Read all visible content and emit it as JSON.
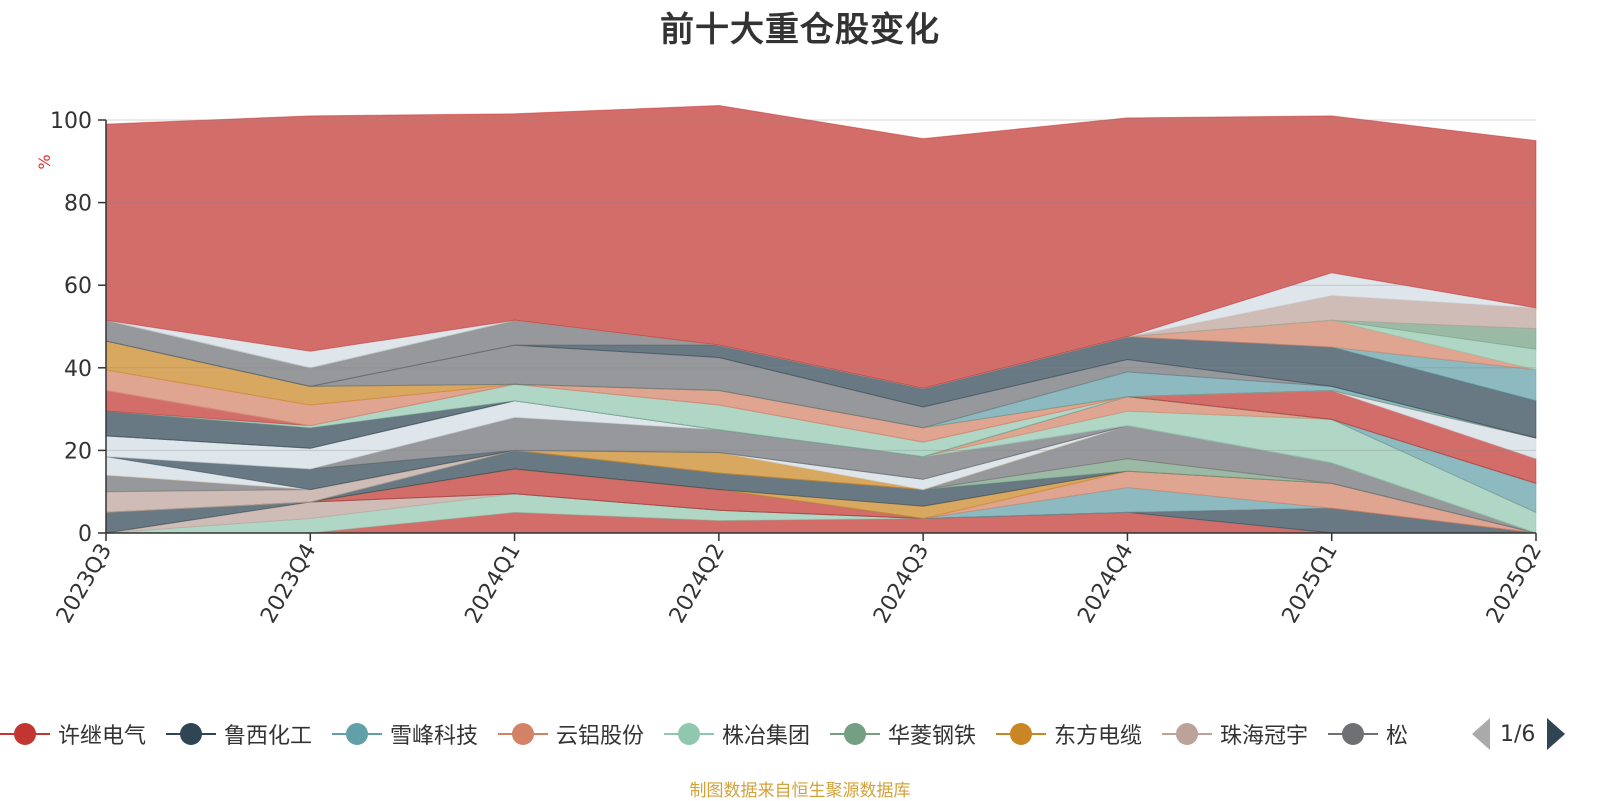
{
  "title": "前十大重仓股变化",
  "footer": "制图数据来自恒生聚源数据库",
  "pager": {
    "text": "1/6"
  },
  "legend": [
    {
      "name": "许继电气",
      "color": "#c23531"
    },
    {
      "name": "鲁西化工",
      "color": "#2f4554"
    },
    {
      "name": "雪峰科技",
      "color": "#61a0a8"
    },
    {
      "name": "云铝股份",
      "color": "#d48265"
    },
    {
      "name": "株冶集团",
      "color": "#91c7ae"
    },
    {
      "name": "华菱钢铁",
      "color": "#749f83"
    },
    {
      "name": "东方电缆",
      "color": "#ca8622"
    },
    {
      "name": "珠海冠宇",
      "color": "#bda29a"
    },
    {
      "name": "松",
      "color": "#6e7074"
    }
  ],
  "chart_data": {
    "type": "area",
    "stacked": true,
    "unit": "%",
    "ylim": [
      0,
      100
    ],
    "yticks": [
      0,
      20,
      40,
      60,
      80,
      100
    ],
    "grid": true,
    "categories": [
      "2023Q3",
      "2023Q4",
      "2024Q1",
      "2024Q2",
      "2024Q3",
      "2024Q4",
      "2025Q1",
      "2025Q2"
    ],
    "series": [
      {
        "color": "#c23531",
        "values": [
          0,
          0,
          5,
          3,
          3.5,
          5,
          0,
          0
        ]
      },
      {
        "color": "#91c7ae",
        "values": [
          0,
          3.5,
          4.5,
          2.5,
          0,
          0,
          0,
          0
        ]
      },
      {
        "color": "#bda29a",
        "values": [
          0,
          4,
          0,
          0,
          0,
          0,
          0,
          0
        ]
      },
      {
        "color": "#2f4554",
        "values": [
          5,
          0,
          0,
          0,
          0,
          0,
          6,
          0
        ]
      },
      {
        "color": "#c23531",
        "values": [
          0,
          0,
          6,
          5,
          0,
          0,
          0,
          0
        ]
      },
      {
        "color": "#61a0a8",
        "values": [
          0,
          0,
          0,
          0,
          0,
          6,
          0,
          0
        ]
      },
      {
        "color": "#d48265",
        "values": [
          0,
          0,
          0,
          0,
          0,
          4,
          6,
          0
        ]
      },
      {
        "color": "#ca8622",
        "values": [
          0,
          0,
          0,
          0,
          3,
          0,
          0,
          0
        ]
      },
      {
        "color": "#2f4554",
        "values": [
          0,
          0,
          4.5,
          4,
          4,
          0,
          0,
          0
        ]
      },
      {
        "color": "#749f83",
        "values": [
          0,
          0,
          0,
          0,
          0,
          3,
          0,
          0
        ]
      },
      {
        "color": "#bda29a",
        "values": [
          5,
          3,
          0,
          0,
          0,
          0,
          0,
          0
        ]
      },
      {
        "color": "#6e7074",
        "values": [
          4,
          0,
          0,
          0,
          0,
          8,
          5,
          0
        ]
      },
      {
        "color": "#ca8622",
        "values": [
          0,
          0,
          0,
          5,
          0,
          0,
          0,
          0
        ]
      },
      {
        "color": "#d3dce3",
        "values": [
          4.5,
          0,
          0,
          0,
          2.5,
          0,
          0,
          0
        ]
      },
      {
        "color": "#2f4554",
        "values": [
          0,
          5,
          0,
          0,
          0,
          0,
          0,
          0
        ]
      },
      {
        "color": "#6e7074",
        "values": [
          0,
          0,
          8,
          5.5,
          5.5,
          0,
          0,
          0
        ]
      },
      {
        "color": "#d3dce3",
        "values": [
          5,
          5,
          4,
          0,
          0,
          0,
          0,
          0
        ]
      },
      {
        "color": "#91c7ae",
        "values": [
          0,
          0,
          0,
          0,
          0,
          3.5,
          10.5,
          5
        ]
      },
      {
        "color": "#d48265",
        "values": [
          0,
          0,
          0,
          0,
          0,
          3.5,
          0,
          0
        ]
      },
      {
        "color": "#61a0a8",
        "values": [
          0,
          0,
          0,
          0,
          0,
          0,
          0,
          7
        ]
      },
      {
        "color": "#2f4554",
        "values": [
          6,
          5,
          0,
          0,
          0,
          0,
          0,
          0
        ]
      },
      {
        "color": "#91c7ae",
        "values": [
          0,
          0.5,
          4,
          6,
          3.5,
          0,
          0,
          0
        ]
      },
      {
        "color": "#c23531",
        "values": [
          5,
          0,
          0,
          0,
          0,
          0,
          7,
          6
        ]
      },
      {
        "color": "#d3dce3",
        "values": [
          0,
          0,
          0,
          0,
          0,
          0,
          0,
          5
        ]
      },
      {
        "color": "#d48265",
        "values": [
          5,
          5,
          0,
          3.5,
          3.5,
          0,
          0,
          0
        ]
      },
      {
        "color": "#ca8622",
        "values": [
          7,
          4.5,
          0,
          0,
          0,
          0,
          0,
          0
        ]
      },
      {
        "color": "#61a0a8",
        "values": [
          0,
          0,
          0,
          0,
          0,
          6,
          1,
          0
        ]
      },
      {
        "color": "#6e7074",
        "values": [
          0,
          0,
          9.5,
          8,
          5,
          3,
          0,
          0
        ]
      },
      {
        "color": "#2f4554",
        "values": [
          0,
          0,
          0,
          3,
          4.5,
          5.5,
          9.5,
          9
        ]
      },
      {
        "color": "#6e7074",
        "values": [
          5,
          4.5,
          6,
          0,
          0,
          0,
          0,
          0
        ]
      },
      {
        "color": "#61a0a8",
        "values": [
          0,
          0,
          0,
          0,
          0,
          0,
          0,
          7.5
        ]
      },
      {
        "color": "#d48265",
        "values": [
          0,
          0,
          0,
          0,
          0,
          0,
          6.5,
          0
        ]
      },
      {
        "color": "#91c7ae",
        "values": [
          0,
          0,
          0,
          0,
          0,
          0,
          0,
          5
        ]
      },
      {
        "color": "#749f83",
        "values": [
          0,
          0,
          0,
          0,
          0,
          0,
          0,
          5
        ]
      },
      {
        "color": "#bda29a",
        "values": [
          0,
          0,
          0,
          0,
          0,
          0,
          6,
          5
        ]
      },
      {
        "color": "#d3dce3",
        "values": [
          0,
          4,
          0,
          0,
          0,
          0,
          5.5,
          0
        ]
      },
      {
        "color": "#c23531",
        "values": [
          47.5,
          57,
          50,
          58,
          60.5,
          53,
          38,
          40.5
        ]
      }
    ]
  }
}
